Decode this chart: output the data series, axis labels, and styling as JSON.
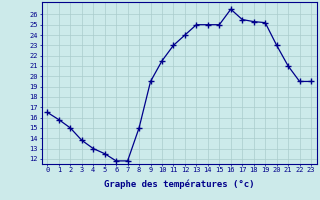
{
  "hours": [
    0,
    1,
    2,
    3,
    4,
    5,
    6,
    7,
    8,
    9,
    10,
    11,
    12,
    13,
    14,
    15,
    16,
    17,
    18,
    19,
    20,
    21,
    22,
    23
  ],
  "temperatures": [
    16.5,
    15.8,
    15.0,
    13.8,
    13.0,
    12.5,
    11.8,
    11.8,
    15.0,
    19.5,
    21.5,
    23.0,
    24.0,
    25.0,
    25.0,
    25.0,
    26.5,
    25.5,
    25.3,
    25.2,
    23.0,
    21.0,
    19.5,
    19.5
  ],
  "line_color": "#00008b",
  "marker": "+",
  "bg_color": "#cceaea",
  "grid_color": "#aacccc",
  "xlabel": "Graphe des températures (°c)",
  "ylabel_ticks": [
    12,
    13,
    14,
    15,
    16,
    17,
    18,
    19,
    20,
    21,
    22,
    23,
    24,
    25,
    26
  ],
  "ylim": [
    11.5,
    27.2
  ],
  "xlim": [
    -0.5,
    23.5
  ],
  "tick_color": "#00008b",
  "border_color": "#00008b",
  "tick_fontsize": 5.0,
  "xlabel_fontsize": 6.5
}
